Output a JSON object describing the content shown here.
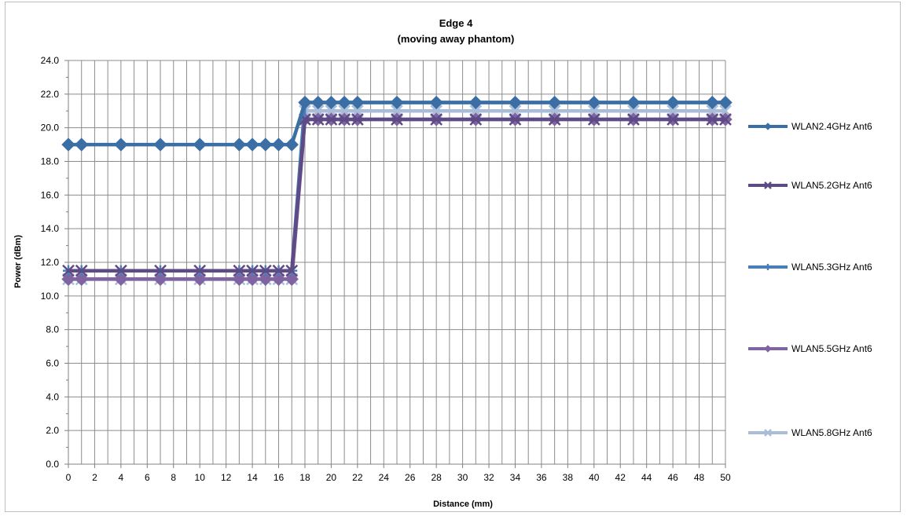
{
  "chart_data": {
    "type": "line",
    "title": "Edge 4",
    "subtitle": "(moving away phantom)",
    "xlabel": "Distance (mm)",
    "ylabel": "Power (dBm)",
    "ylim": [
      0,
      24
    ],
    "yticks": [
      "0.0",
      "2.0",
      "4.0",
      "6.0",
      "8.0",
      "10.0",
      "12.0",
      "14.0",
      "16.0",
      "18.0",
      "20.0",
      "22.0",
      "24.0"
    ],
    "xlim": [
      0,
      50
    ],
    "xticks": [
      0,
      2,
      4,
      6,
      8,
      10,
      12,
      14,
      16,
      18,
      20,
      22,
      24,
      26,
      28,
      30,
      32,
      34,
      36,
      38,
      40,
      42,
      44,
      46,
      48,
      50
    ],
    "x": [
      0,
      1,
      4,
      7,
      10,
      13,
      14,
      15,
      16,
      17,
      18,
      19,
      20,
      21,
      22,
      25,
      28,
      31,
      34,
      37,
      40,
      43,
      46,
      49,
      50
    ],
    "grid": true,
    "legend_position": "right",
    "series": [
      {
        "name": "WLAN2.4GHz Ant6",
        "color": "#3b6ea5",
        "marker": "diamond",
        "values": [
          19,
          19,
          19,
          19,
          19,
          19,
          19,
          19,
          19,
          19,
          21.5,
          21.5,
          21.5,
          21.5,
          21.5,
          21.5,
          21.5,
          21.5,
          21.5,
          21.5,
          21.5,
          21.5,
          21.5,
          21.5,
          21.5
        ]
      },
      {
        "name": "WLAN5.2GHz Ant6",
        "color": "#5e4a85",
        "marker": "x",
        "values": [
          11.5,
          11.5,
          11.5,
          11.5,
          11.5,
          11.5,
          11.5,
          11.5,
          11.5,
          11.5,
          20.5,
          20.5,
          20.5,
          20.5,
          20.5,
          20.5,
          20.5,
          20.5,
          20.5,
          20.5,
          20.5,
          20.5,
          20.5,
          20.5,
          20.5
        ]
      },
      {
        "name": "WLAN5.3GHz Ant6",
        "color": "#4a7eb8",
        "marker": "plus",
        "values": [
          11.5,
          11.5,
          11.5,
          11.5,
          11.5,
          11.5,
          11.5,
          11.5,
          11.5,
          11.5,
          21.5,
          21.5,
          21.5,
          21.5,
          21.5,
          21.5,
          21.5,
          21.5,
          21.5,
          21.5,
          21.5,
          21.5,
          21.5,
          21.5,
          21.5
        ]
      },
      {
        "name": "WLAN5.5GHz Ant6",
        "color": "#8064a2",
        "marker": "diamond",
        "values": [
          11,
          11,
          11,
          11,
          11,
          11,
          11,
          11,
          11,
          11,
          20.5,
          20.5,
          20.5,
          20.5,
          20.5,
          20.5,
          20.5,
          20.5,
          20.5,
          20.5,
          20.5,
          20.5,
          20.5,
          20.5,
          20.5
        ]
      },
      {
        "name": "WLAN5.8GHz Ant6",
        "color": "#a9bcd8",
        "marker": "x",
        "values": [
          11,
          11,
          11,
          11,
          11,
          11,
          11,
          11,
          11,
          11,
          21,
          21,
          21,
          21,
          21,
          21,
          21,
          21,
          21,
          21,
          21,
          21,
          21,
          21,
          21
        ]
      }
    ]
  }
}
